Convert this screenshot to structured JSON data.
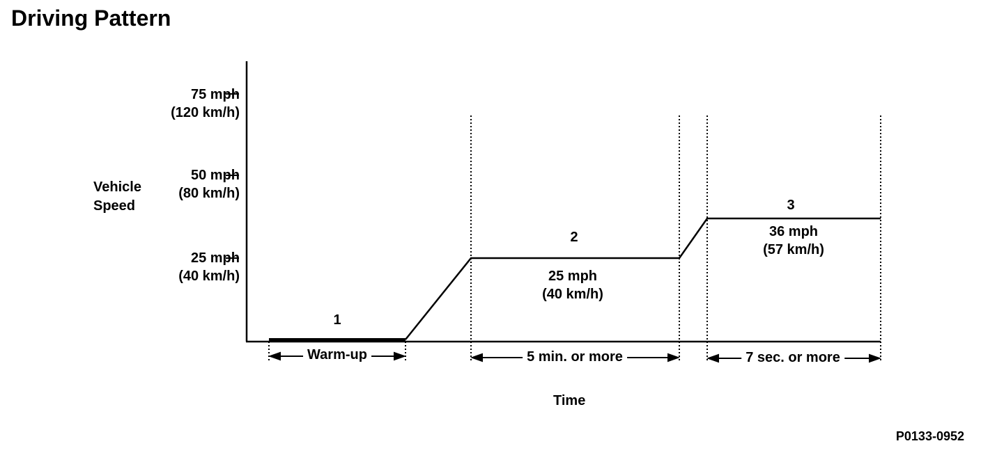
{
  "title": "Driving Pattern",
  "y_axis": {
    "label_lines": [
      "Vehicle",
      "Speed"
    ],
    "ticks": [
      {
        "mph": "75 mph",
        "kmh": "(120 km/h)"
      },
      {
        "mph": "50 mph",
        "kmh": "(80 km/h)"
      },
      {
        "mph": "25 mph",
        "kmh": "(40 km/h)"
      }
    ]
  },
  "x_axis": {
    "label": "Time"
  },
  "segments": [
    {
      "number": "1",
      "duration": "Warm-up"
    },
    {
      "number": "2",
      "speed_mph": "25 mph",
      "speed_kmh": "(40 km/h)",
      "duration": "5 min. or more"
    },
    {
      "number": "3",
      "speed_mph": "36 mph",
      "speed_kmh": "(57 km/h)",
      "duration": "7 sec. or more"
    }
  ],
  "figure_id": "P0133-0952"
}
